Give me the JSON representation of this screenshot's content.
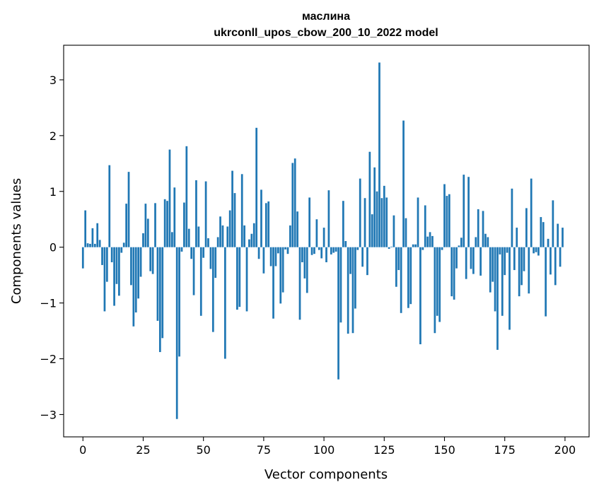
{
  "chart_data": {
    "type": "bar",
    "title_line1": "маслина",
    "title_line2": "ukrconll_upos_cbow_200_10_2022 model",
    "xlabel": "Vector components",
    "ylabel": "Components values",
    "xlim": [
      -8,
      210
    ],
    "ylim": [
      -3.4,
      3.62
    ],
    "xticks": [
      0,
      25,
      50,
      75,
      100,
      125,
      150,
      175,
      200
    ],
    "yticks": [
      -3,
      -2,
      -1,
      0,
      1,
      2,
      3
    ],
    "ytick_labels": [
      "−3",
      "−2",
      "−1",
      "0",
      "1",
      "2",
      "3"
    ],
    "bar_color": "#1f77b4",
    "grid": false,
    "values": [
      -0.38,
      0.66,
      0.07,
      0.06,
      0.34,
      0.06,
      0.43,
      0.13,
      -0.32,
      -1.15,
      -0.62,
      1.47,
      -0.27,
      -1.05,
      -0.66,
      -0.87,
      -0.1,
      0.08,
      0.78,
      1.35,
      -0.68,
      -1.42,
      -1.17,
      -0.92,
      -0.53,
      0.25,
      0.78,
      0.51,
      -0.43,
      -0.48,
      0.79,
      -1.32,
      -1.88,
      -1.63,
      0.86,
      0.83,
      1.75,
      0.27,
      1.07,
      -3.08,
      -1.96,
      -0.08,
      0.8,
      1.81,
      0.33,
      -0.21,
      -0.86,
      1.2,
      0.37,
      -1.23,
      -0.19,
      1.18,
      0.16,
      -0.39,
      -1.52,
      -0.55,
      0.18,
      0.55,
      0.39,
      -2.0,
      0.37,
      0.66,
      1.37,
      0.97,
      -1.12,
      -1.07,
      1.31,
      0.39,
      -1.15,
      0.14,
      0.24,
      0.43,
      2.14,
      -0.21,
      1.03,
      -0.47,
      0.79,
      0.82,
      -0.34,
      -1.28,
      -0.34,
      -0.11,
      -1.01,
      -0.81,
      -0.04,
      -0.12,
      0.39,
      1.51,
      1.59,
      0.64,
      -1.3,
      -0.27,
      -0.56,
      -0.82,
      0.89,
      -0.14,
      -0.12,
      0.5,
      -0.05,
      -0.2,
      0.35,
      -0.27,
      1.02,
      -0.13,
      -0.1,
      -0.08,
      -2.37,
      -1.35,
      0.83,
      0.11,
      -1.55,
      -0.48,
      -1.54,
      -1.1,
      -0.05,
      1.23,
      -0.35,
      0.88,
      -0.5,
      1.71,
      0.59,
      1.43,
      1.0,
      3.31,
      0.88,
      1.1,
      0.89,
      -0.03,
      0.01,
      0.57,
      -0.71,
      -0.41,
      -1.18,
      2.27,
      0.52,
      -1.09,
      -1.02,
      0.05,
      0.05,
      0.89,
      -1.74,
      -0.05,
      0.75,
      0.19,
      0.27,
      0.2,
      -1.54,
      -1.23,
      -1.34,
      -0.05,
      1.13,
      0.92,
      0.95,
      -0.88,
      -0.94,
      -0.38,
      0.03,
      0.17,
      1.3,
      -0.57,
      1.26,
      -0.39,
      -0.48,
      0.18,
      0.68,
      -0.51,
      0.65,
      0.24,
      0.18,
      -0.81,
      -0.62,
      -1.15,
      -1.84,
      -0.13,
      -1.23,
      -0.5,
      -0.1,
      -1.48,
      1.05,
      -0.41,
      0.35,
      -0.88,
      -0.68,
      -0.43,
      0.7,
      -0.83,
      1.23,
      -0.11,
      -0.09,
      -0.15,
      0.54,
      0.45,
      -1.24,
      0.15,
      -0.49,
      0.84,
      -0.68,
      0.42,
      -0.35,
      0.35
    ]
  }
}
